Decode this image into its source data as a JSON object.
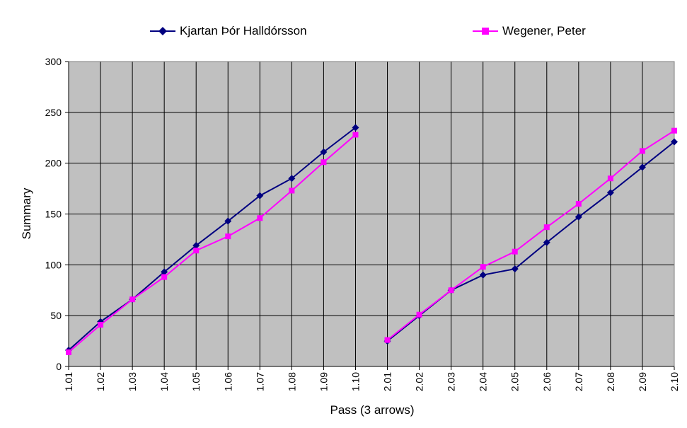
{
  "chart_data": {
    "type": "line",
    "title": "",
    "xlabel": "Pass (3 arrows)",
    "ylabel": "Summary",
    "ylim": [
      0,
      300
    ],
    "yticks": [
      "0",
      "50",
      "100",
      "150",
      "200",
      "250",
      "300"
    ],
    "grid": true,
    "legend_position": "top",
    "plot_background": "#c0c0c0",
    "categories": [
      "1.01",
      "1.02",
      "1.03",
      "1.04",
      "1.05",
      "1.06",
      "1.07",
      "1.08",
      "1.09",
      "1.10",
      "2.01",
      "2.02",
      "2.03",
      "2.04",
      "2.05",
      "2.06",
      "2.07",
      "2.08",
      "2.09",
      "2.10"
    ],
    "series": [
      {
        "name": "Kjartan Þór Halldórsson",
        "color": "#000080",
        "marker": "diamond",
        "values": [
          16,
          44,
          66,
          93,
          119,
          143,
          168,
          185,
          211,
          235,
          25,
          50,
          75,
          90,
          96,
          122,
          147,
          171,
          196,
          221
        ]
      },
      {
        "name": "Wegener, Peter",
        "color": "#ff00ff",
        "marker": "square",
        "values": [
          14,
          41,
          66,
          88,
          114,
          128,
          146,
          173,
          201,
          228,
          26,
          51,
          75,
          98,
          113,
          137,
          160,
          185,
          212,
          232
        ]
      }
    ],
    "segments_break_after_index": 9
  }
}
